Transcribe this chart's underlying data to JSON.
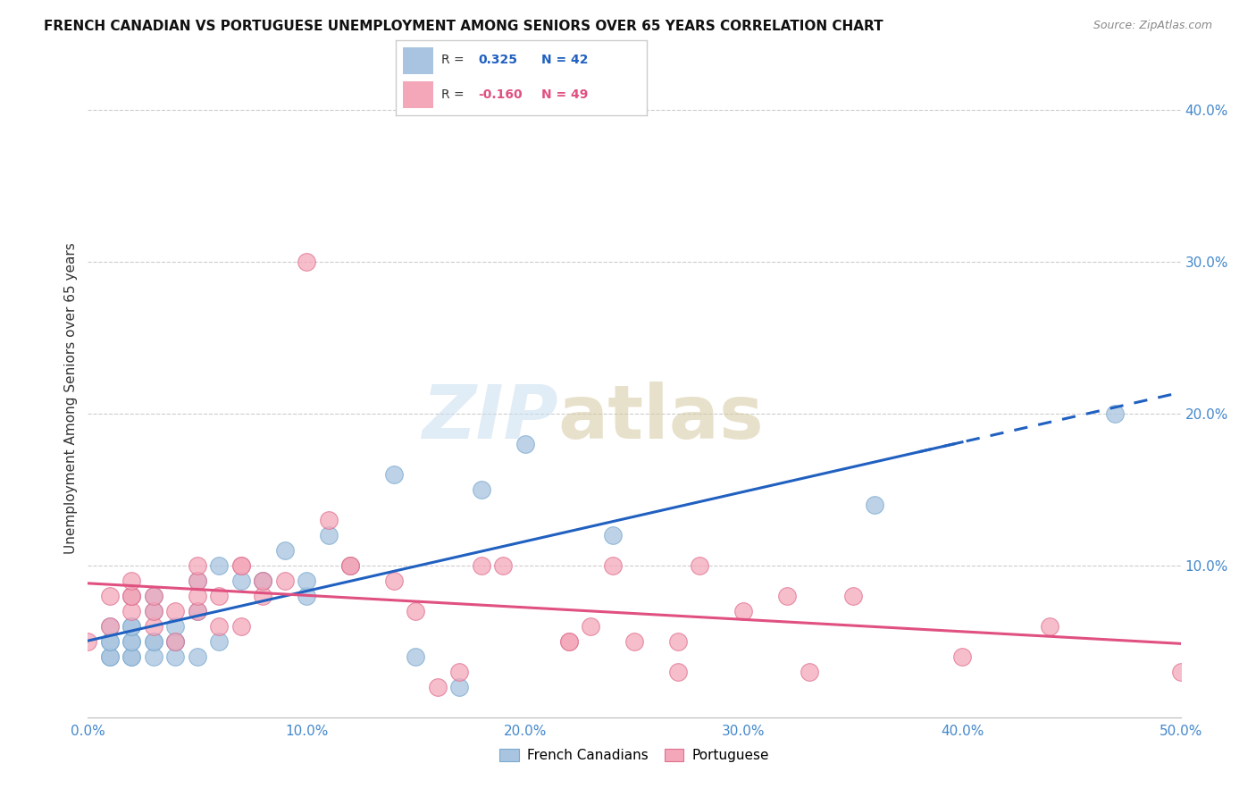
{
  "title": "FRENCH CANADIAN VS PORTUGUESE UNEMPLOYMENT AMONG SENIORS OVER 65 YEARS CORRELATION CHART",
  "source": "Source: ZipAtlas.com",
  "ylabel": "Unemployment Among Seniors over 65 years",
  "x_min": 0.0,
  "x_max": 0.5,
  "y_min": 0.0,
  "y_max": 0.42,
  "x_ticks": [
    0.0,
    0.1,
    0.2,
    0.3,
    0.4,
    0.5
  ],
  "x_tick_labels": [
    "0.0%",
    "10.0%",
    "20.0%",
    "30.0%",
    "40.0%",
    "50.0%"
  ],
  "y_ticks_right": [
    0.1,
    0.2,
    0.3,
    0.4
  ],
  "y_tick_labels_right": [
    "10.0%",
    "20.0%",
    "30.0%",
    "40.0%"
  ],
  "french_color": "#a8c4e0",
  "french_edge_color": "#7aaad0",
  "portuguese_color": "#f4a7b9",
  "portuguese_edge_color": "#e07090",
  "french_line_color": "#2060c0",
  "portuguese_line_color": "#e05080",
  "french_R": "0.325",
  "french_N": "42",
  "portuguese_R": "-0.160",
  "portuguese_N": "49",
  "french_x": [
    0.01,
    0.01,
    0.01,
    0.01,
    0.01,
    0.02,
    0.02,
    0.02,
    0.02,
    0.02,
    0.02,
    0.02,
    0.03,
    0.03,
    0.03,
    0.03,
    0.03,
    0.04,
    0.04,
    0.04,
    0.04,
    0.05,
    0.05,
    0.05,
    0.06,
    0.06,
    0.07,
    0.08,
    0.08,
    0.09,
    0.1,
    0.1,
    0.11,
    0.12,
    0.14,
    0.15,
    0.17,
    0.18,
    0.2,
    0.24,
    0.36,
    0.47
  ],
  "french_y": [
    0.04,
    0.04,
    0.05,
    0.05,
    0.06,
    0.04,
    0.04,
    0.05,
    0.05,
    0.06,
    0.06,
    0.08,
    0.04,
    0.05,
    0.05,
    0.07,
    0.08,
    0.04,
    0.05,
    0.05,
    0.06,
    0.04,
    0.07,
    0.09,
    0.05,
    0.1,
    0.09,
    0.09,
    0.09,
    0.11,
    0.08,
    0.09,
    0.12,
    0.1,
    0.16,
    0.04,
    0.02,
    0.15,
    0.18,
    0.12,
    0.14,
    0.2
  ],
  "portuguese_x": [
    0.0,
    0.01,
    0.01,
    0.02,
    0.02,
    0.02,
    0.02,
    0.03,
    0.03,
    0.03,
    0.04,
    0.04,
    0.05,
    0.05,
    0.05,
    0.05,
    0.06,
    0.06,
    0.07,
    0.07,
    0.07,
    0.08,
    0.08,
    0.09,
    0.1,
    0.11,
    0.12,
    0.12,
    0.14,
    0.15,
    0.16,
    0.17,
    0.18,
    0.19,
    0.22,
    0.22,
    0.23,
    0.24,
    0.25,
    0.27,
    0.27,
    0.28,
    0.3,
    0.32,
    0.33,
    0.35,
    0.4,
    0.44,
    0.5
  ],
  "portuguese_y": [
    0.05,
    0.06,
    0.08,
    0.07,
    0.08,
    0.08,
    0.09,
    0.06,
    0.07,
    0.08,
    0.05,
    0.07,
    0.07,
    0.08,
    0.09,
    0.1,
    0.06,
    0.08,
    0.06,
    0.1,
    0.1,
    0.08,
    0.09,
    0.09,
    0.3,
    0.13,
    0.1,
    0.1,
    0.09,
    0.07,
    0.02,
    0.03,
    0.1,
    0.1,
    0.05,
    0.05,
    0.06,
    0.1,
    0.05,
    0.03,
    0.05,
    0.1,
    0.07,
    0.08,
    0.03,
    0.08,
    0.04,
    0.06,
    0.03
  ]
}
